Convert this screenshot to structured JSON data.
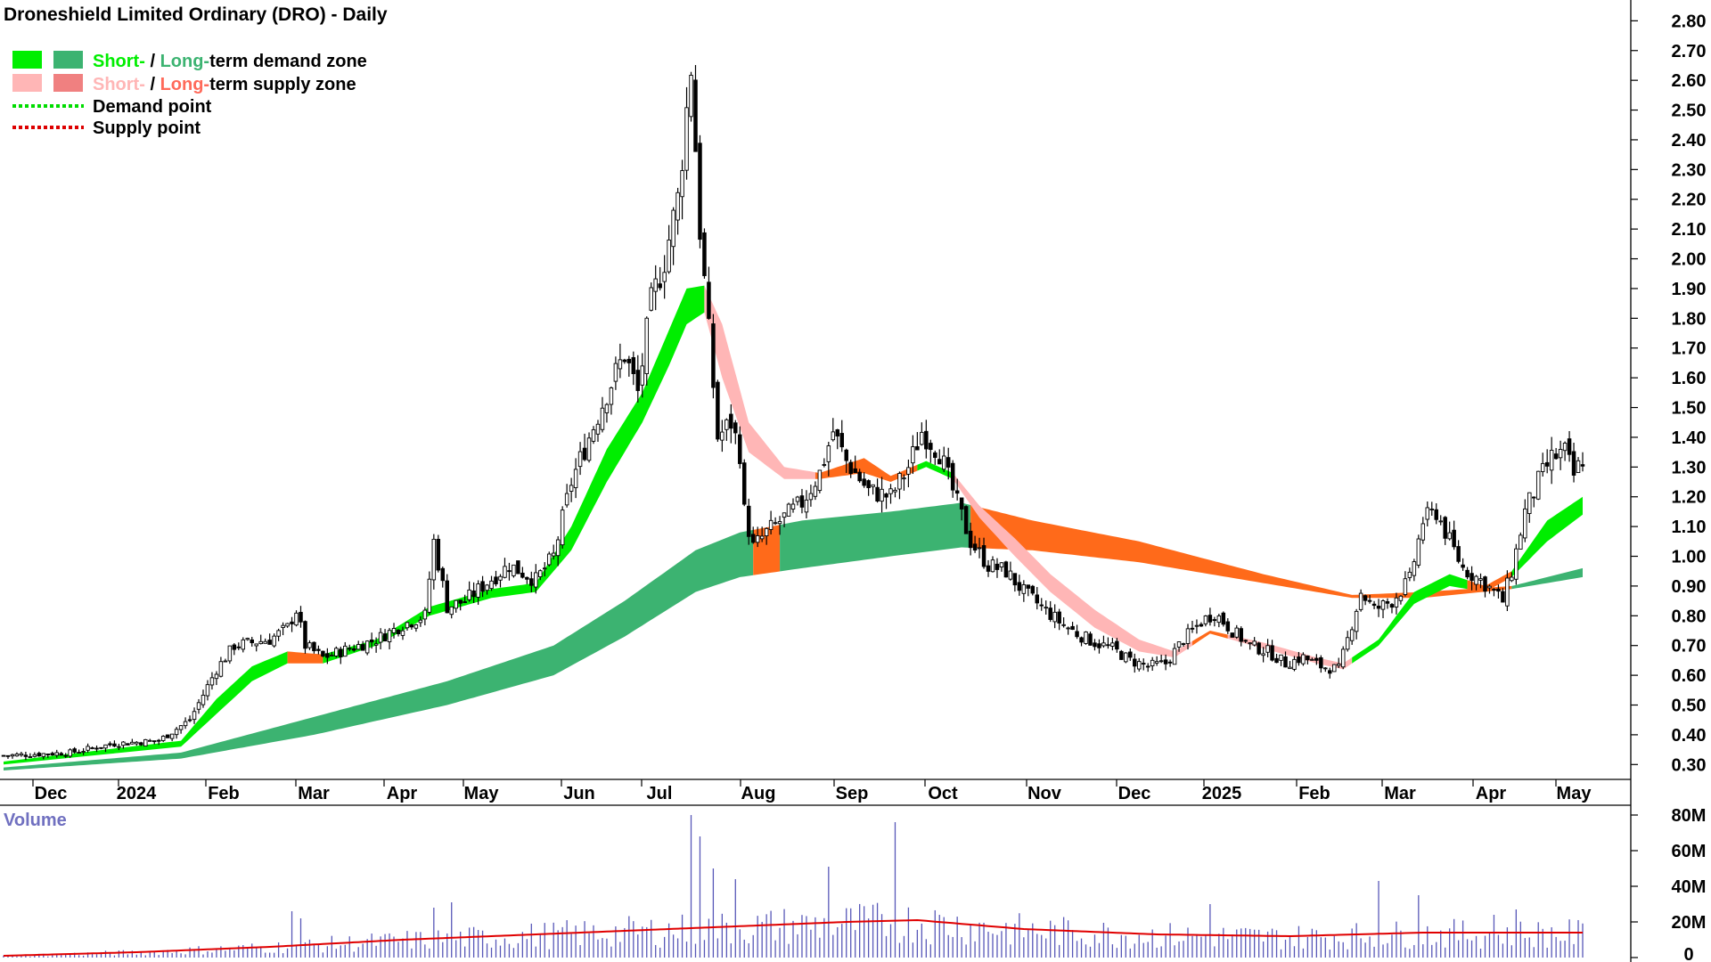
{
  "chart_data": {
    "type": "candlestick",
    "title": "Droneshield Limited Ordinary (DRO) - Daily",
    "legend": [
      {
        "label_parts": [
          {
            "text": "Short-",
            "color": "#00ee00"
          },
          {
            "text": " / ",
            "color": "#000000"
          },
          {
            "text": "Long-",
            "color": "#3cb371"
          },
          {
            "text": "term demand zone",
            "color": "#000000"
          }
        ],
        "swatches": [
          "#00ee00",
          "#3cb371"
        ],
        "kind": "box"
      },
      {
        "label_parts": [
          {
            "text": "Short-",
            "color": "#ffb6b6"
          },
          {
            "text": " / ",
            "color": "#000000"
          },
          {
            "text": "Long-",
            "color": "#ff6a5a"
          },
          {
            "text": "term supply zone",
            "color": "#000000"
          }
        ],
        "swatches": [
          "#ffb6b6",
          "#f08080"
        ],
        "kind": "box"
      },
      {
        "label_parts": [
          {
            "text": "Demand point",
            "color": "#000000"
          }
        ],
        "swatches": [
          "#00dd00"
        ],
        "kind": "dotted"
      },
      {
        "label_parts": [
          {
            "text": "Supply point",
            "color": "#000000"
          }
        ],
        "swatches": [
          "#dd0000"
        ],
        "kind": "dotted"
      }
    ],
    "x_ticks": [
      "Dec",
      "2024",
      "Feb",
      "Mar",
      "Apr",
      "May",
      "Jun",
      "Jul",
      "Aug",
      "Sep",
      "Oct",
      "Nov",
      "Dec",
      "2025",
      "Feb",
      "Mar",
      "Apr",
      "May"
    ],
    "y_ticks": [
      "2.80",
      "2.70",
      "2.60",
      "2.50",
      "2.40",
      "2.30",
      "2.20",
      "2.10",
      "2.00",
      "1.90",
      "1.80",
      "1.70",
      "1.60",
      "1.50",
      "1.40",
      "1.30",
      "1.20",
      "1.10",
      "1.00",
      "0.90",
      "0.80",
      "0.70",
      "0.60",
      "0.50",
      "0.40",
      "0.30"
    ],
    "ylim": [
      0.25,
      2.84
    ],
    "price_anchors": [
      [
        0,
        0.33
      ],
      [
        15,
        0.34
      ],
      [
        25,
        0.37
      ],
      [
        35,
        0.38
      ],
      [
        42,
        0.45
      ],
      [
        48,
        0.62
      ],
      [
        52,
        0.7
      ],
      [
        60,
        0.72
      ],
      [
        64,
        0.76
      ],
      [
        66,
        0.82
      ],
      [
        68,
        0.7
      ],
      [
        72,
        0.66
      ],
      [
        78,
        0.69
      ],
      [
        84,
        0.72
      ],
      [
        90,
        0.77
      ],
      [
        95,
        0.8
      ],
      [
        97,
        1.05
      ],
      [
        100,
        0.83
      ],
      [
        104,
        0.85
      ],
      [
        108,
        0.9
      ],
      [
        114,
        0.97
      ],
      [
        120,
        0.92
      ],
      [
        124,
        1.0
      ],
      [
        128,
        1.25
      ],
      [
        132,
        1.4
      ],
      [
        136,
        1.55
      ],
      [
        140,
        1.68
      ],
      [
        143,
        1.55
      ],
      [
        146,
        1.85
      ],
      [
        149,
        2.0
      ],
      [
        152,
        2.2
      ],
      [
        155,
        2.65
      ],
      [
        157,
        2.1
      ],
      [
        159,
        1.75
      ],
      [
        161,
        1.4
      ],
      [
        164,
        1.45
      ],
      [
        166,
        1.35
      ],
      [
        167,
        1.15
      ],
      [
        169,
        1.03
      ],
      [
        172,
        1.08
      ],
      [
        176,
        1.13
      ],
      [
        180,
        1.18
      ],
      [
        184,
        1.28
      ],
      [
        187,
        1.42
      ],
      [
        190,
        1.32
      ],
      [
        195,
        1.22
      ],
      [
        200,
        1.2
      ],
      [
        204,
        1.3
      ],
      [
        207,
        1.42
      ],
      [
        211,
        1.35
      ],
      [
        214,
        1.22
      ],
      [
        218,
        1.05
      ],
      [
        222,
        0.97
      ],
      [
        226,
        0.95
      ],
      [
        230,
        0.88
      ],
      [
        234,
        0.83
      ],
      [
        238,
        0.78
      ],
      [
        242,
        0.74
      ],
      [
        246,
        0.71
      ],
      [
        250,
        0.69
      ],
      [
        254,
        0.65
      ],
      [
        258,
        0.63
      ],
      [
        262,
        0.64
      ],
      [
        266,
        0.72
      ],
      [
        270,
        0.78
      ],
      [
        273,
        0.81
      ],
      [
        277,
        0.75
      ],
      [
        281,
        0.7
      ],
      [
        285,
        0.68
      ],
      [
        289,
        0.64
      ],
      [
        293,
        0.66
      ],
      [
        297,
        0.63
      ],
      [
        301,
        0.62
      ],
      [
        303,
        0.72
      ],
      [
        306,
        0.88
      ],
      [
        309,
        0.82
      ],
      [
        313,
        0.85
      ],
      [
        317,
        0.92
      ],
      [
        320,
        1.12
      ],
      [
        323,
        1.15
      ],
      [
        326,
        1.05
      ],
      [
        329,
        0.96
      ],
      [
        333,
        0.92
      ],
      [
        336,
        0.88
      ],
      [
        338,
        0.85
      ],
      [
        340,
        0.95
      ],
      [
        343,
        1.15
      ],
      [
        346,
        1.25
      ],
      [
        349,
        1.33
      ],
      [
        352,
        1.35
      ],
      [
        354,
        1.27
      ],
      [
        356,
        1.33
      ]
    ],
    "zones": {
      "short_term": [
        [
          0,
          0.3,
          0.31
        ],
        [
          40,
          0.36,
          0.38
        ],
        [
          48,
          0.47,
          0.52
        ],
        [
          56,
          0.58,
          0.63
        ],
        [
          64,
          0.64,
          0.68
        ],
        [
          72,
          0.64,
          0.67
        ],
        [
          84,
          0.7,
          0.72
        ],
        [
          96,
          0.8,
          0.83
        ],
        [
          110,
          0.86,
          0.89
        ],
        [
          120,
          0.88,
          0.91
        ],
        [
          128,
          1.02,
          1.1
        ],
        [
          136,
          1.25,
          1.36
        ],
        [
          144,
          1.45,
          1.55
        ],
        [
          150,
          1.64,
          1.76
        ],
        [
          154,
          1.78,
          1.9
        ],
        [
          158,
          1.82,
          1.91
        ],
        [
          162,
          1.6,
          1.78
        ],
        [
          168,
          1.35,
          1.45
        ],
        [
          176,
          1.26,
          1.3
        ],
        [
          184,
          1.26,
          1.28
        ],
        [
          194,
          1.28,
          1.33
        ],
        [
          200,
          1.25,
          1.27
        ],
        [
          208,
          1.3,
          1.32
        ],
        [
          214,
          1.26,
          1.28
        ],
        [
          220,
          1.13,
          1.17
        ],
        [
          228,
          1.0,
          1.06
        ],
        [
          236,
          0.88,
          0.94
        ],
        [
          246,
          0.76,
          0.82
        ],
        [
          256,
          0.68,
          0.72
        ],
        [
          264,
          0.66,
          0.68
        ],
        [
          272,
          0.74,
          0.75
        ],
        [
          284,
          0.69,
          0.71
        ],
        [
          296,
          0.64,
          0.66
        ],
        [
          302,
          0.62,
          0.64
        ],
        [
          310,
          0.7,
          0.72
        ],
        [
          318,
          0.84,
          0.88
        ],
        [
          326,
          0.9,
          0.94
        ],
        [
          334,
          0.88,
          0.9
        ],
        [
          340,
          0.93,
          0.95
        ],
        [
          348,
          1.05,
          1.12
        ],
        [
          356,
          1.14,
          1.2
        ]
      ],
      "short_colors": [
        [
          0,
          64,
          "demand"
        ],
        [
          64,
          72,
          "supply_dark"
        ],
        [
          72,
          158,
          "demand"
        ],
        [
          158,
          183,
          "supply_light"
        ],
        [
          183,
          200,
          "supply_dark"
        ],
        [
          200,
          206,
          "supply_dark"
        ],
        [
          206,
          214,
          "demand"
        ],
        [
          214,
          268,
          "supply_light"
        ],
        [
          268,
          276,
          "supply_dark"
        ],
        [
          276,
          304,
          "supply_light"
        ],
        [
          304,
          330,
          "demand"
        ],
        [
          330,
          340,
          "supply_dark"
        ],
        [
          340,
          356,
          "demand"
        ]
      ],
      "long_term": [
        [
          0,
          0.28,
          0.29
        ],
        [
          40,
          0.32,
          0.34
        ],
        [
          70,
          0.4,
          0.46
        ],
        [
          100,
          0.5,
          0.58
        ],
        [
          124,
          0.6,
          0.7
        ],
        [
          140,
          0.73,
          0.85
        ],
        [
          156,
          0.88,
          1.02
        ],
        [
          166,
          0.93,
          1.08
        ],
        [
          180,
          0.96,
          1.12
        ],
        [
          200,
          1.0,
          1.15
        ],
        [
          216,
          1.03,
          1.18
        ],
        [
          232,
          1.02,
          1.12
        ],
        [
          256,
          0.98,
          1.05
        ],
        [
          284,
          0.91,
          0.94
        ],
        [
          304,
          0.86,
          0.87
        ],
        [
          320,
          0.86,
          0.88
        ],
        [
          340,
          0.89,
          0.9
        ],
        [
          356,
          0.93,
          0.96
        ]
      ],
      "long_colors": [
        [
          0,
          169,
          "demand"
        ],
        [
          169,
          175,
          "supply_dark"
        ],
        [
          175,
          218,
          "demand"
        ],
        [
          218,
          320,
          "supply_dark"
        ],
        [
          320,
          340,
          "supply_dark"
        ],
        [
          340,
          356,
          "demand"
        ]
      ]
    },
    "volume": {
      "label": "Volume",
      "y_ticks": [
        "80M",
        "60M",
        "40M",
        "20M",
        "0"
      ],
      "ylim": [
        0,
        85
      ],
      "spikes": [
        [
          65,
          26
        ],
        [
          67,
          22
        ],
        [
          97,
          28
        ],
        [
          101,
          31
        ],
        [
          155,
          80
        ],
        [
          157,
          68
        ],
        [
          160,
          50
        ],
        [
          165,
          44
        ],
        [
          186,
          51
        ],
        [
          201,
          76
        ],
        [
          272,
          30
        ],
        [
          310,
          43
        ],
        [
          319,
          35
        ],
        [
          336,
          24
        ],
        [
          341,
          27
        ]
      ],
      "avg_anchors": [
        [
          0,
          1
        ],
        [
          30,
          3
        ],
        [
          60,
          6
        ],
        [
          90,
          10
        ],
        [
          110,
          12
        ],
        [
          140,
          15
        ],
        [
          160,
          17
        ],
        [
          190,
          20
        ],
        [
          206,
          21
        ],
        [
          230,
          16
        ],
        [
          260,
          13
        ],
        [
          290,
          12
        ],
        [
          320,
          14
        ],
        [
          356,
          14
        ]
      ]
    }
  }
}
